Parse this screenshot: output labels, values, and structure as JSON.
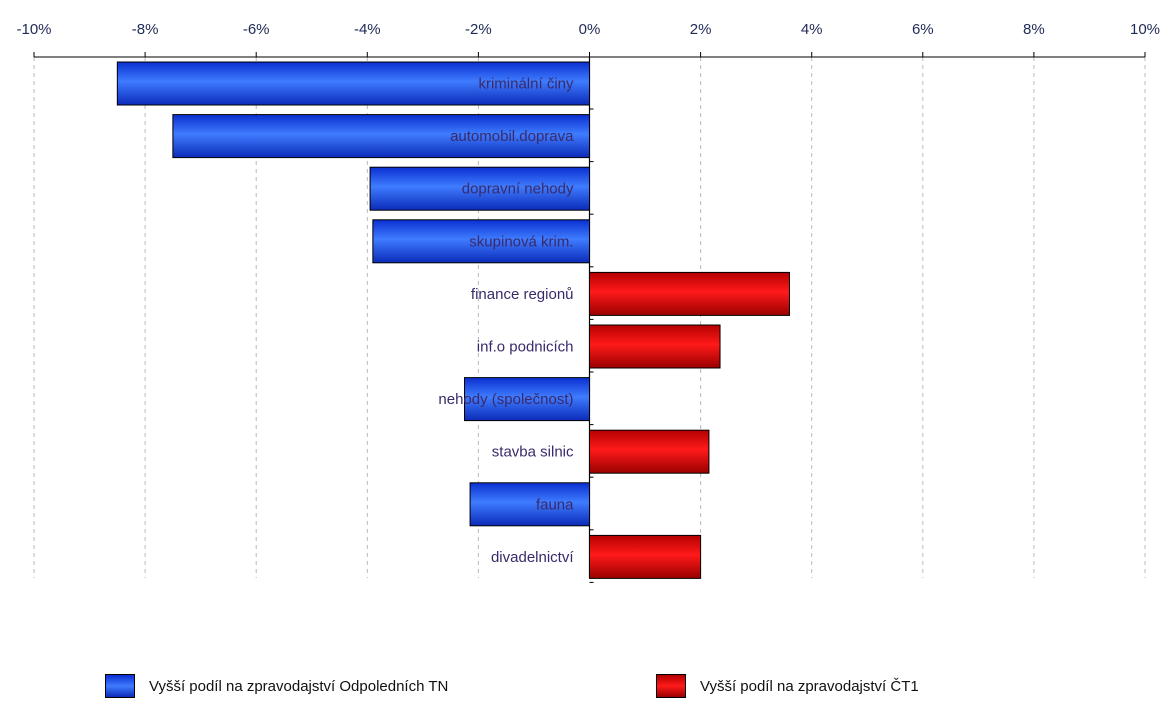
{
  "chart_data": {
    "type": "bar",
    "orientation": "horizontal",
    "xlim": [
      -10,
      10
    ],
    "xticks": [
      "-10%",
      "-8%",
      "-6%",
      "-4%",
      "-2%",
      "0%",
      "2%",
      "4%",
      "6%",
      "8%",
      "10%"
    ],
    "grid": true,
    "legend_position": "bottom",
    "categories": [
      "kriminální činy",
      "automobil.doprava",
      "dopravní nehody",
      "skupinová krim.",
      "finance regionů",
      "inf.o podnicích",
      "nehody (společnost)",
      "stavba silnic",
      "fauna",
      "divadelnictví"
    ],
    "values": [
      -8.5,
      -7.5,
      -3.95,
      -3.9,
      3.6,
      2.35,
      -2.25,
      2.15,
      -2.15,
      2.0
    ],
    "series": [
      {
        "name": "Vyšší podíl na zpravodajství Odpoledních TN",
        "color": "#2255ee",
        "sign": "negative"
      },
      {
        "name": "Vyšší podíl na zpravodajství ČT1",
        "color": "#e00000",
        "sign": "positive"
      }
    ]
  },
  "legend": {
    "items": [
      {
        "label": "Vyšší podíl na zpravodajství Odpoledních TN",
        "color": "#2255ee"
      },
      {
        "label": "Vyšší podíl na zpravodajství ČT1",
        "color": "#e00000"
      }
    ]
  }
}
